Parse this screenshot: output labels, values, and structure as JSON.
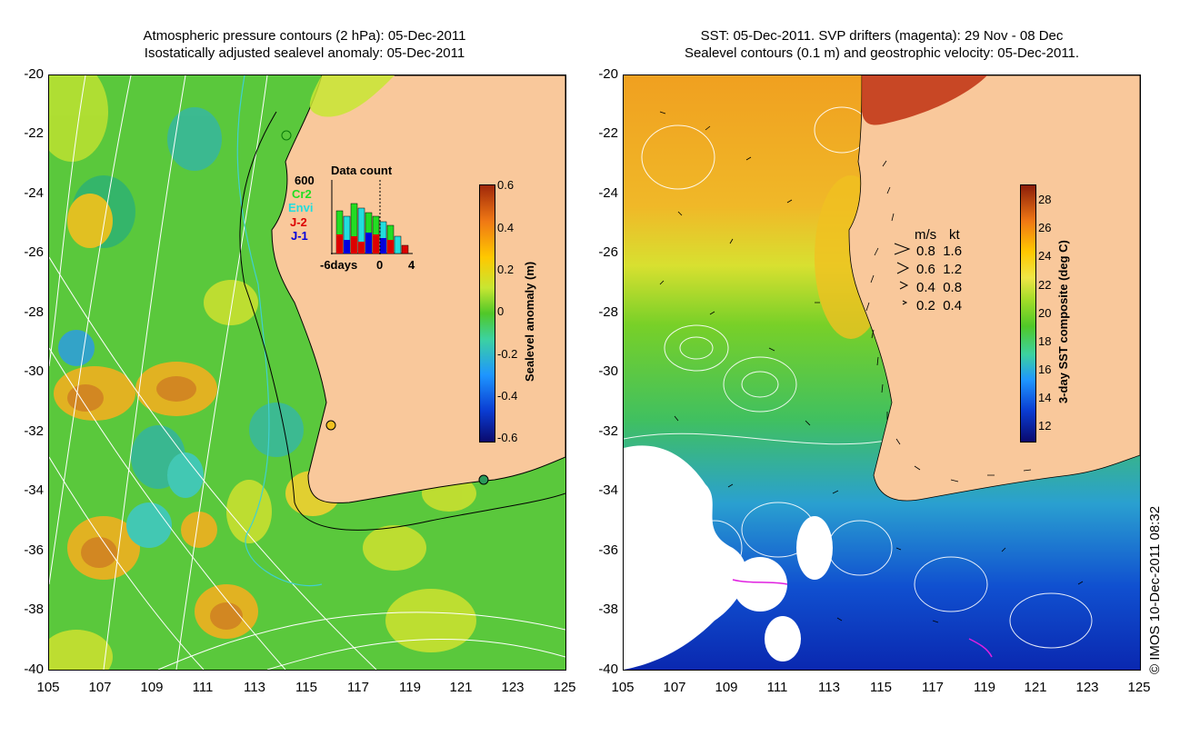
{
  "left_panel": {
    "title_line1": "Atmospheric pressure contours (2 hPa): 05-Dec-2011",
    "title_line2": "Isostatically adjusted sealevel anomaly: 05-Dec-2011",
    "colorbar_title": "Sealevel anomaly (m)",
    "colorbar_ticks": [
      "0.6",
      "0.4",
      "0.2",
      "0",
      "-0.2",
      "-0.4",
      "-0.6"
    ],
    "colors": {
      "land": "#f9c89b",
      "ocean_main": "#5ac83c",
      "contour": "#ffffff",
      "coast_line": "#000000",
      "isobath": "#40d0d0"
    },
    "inset": {
      "title": "Data count",
      "max_label": "600",
      "missions": [
        {
          "name": "Cr2",
          "color": "#22dd22"
        },
        {
          "name": "Envi",
          "color": "#22dddd"
        },
        {
          "name": "J-2",
          "color": "#dd0000"
        },
        {
          "name": "J-1",
          "color": "#0000dd"
        }
      ],
      "x_labels": [
        "-6days",
        "0",
        "4"
      ]
    }
  },
  "right_panel": {
    "title_line1": "SST: 05-Dec-2011. SVP drifters (magenta): 29 Nov - 08 Dec",
    "title_line2": "Sealevel contours (0.1 m) and geostrophic velocity: 05-Dec-2011.",
    "colorbar_title": "3-day SST composite (deg C)",
    "colorbar_ticks": [
      "28",
      "26",
      "24",
      "22",
      "20",
      "18",
      "16",
      "14",
      "12"
    ],
    "colors": {
      "land": "#f9c89b",
      "warm": "#f0b428",
      "cool": "#2c78dc"
    },
    "velocity_legend": {
      "header_ms": "m/s",
      "header_kt": "kt",
      "rows": [
        {
          "ms": "0.8",
          "kt": "1.6"
        },
        {
          "ms": "0.6",
          "kt": "1.2"
        },
        {
          "ms": "0.4",
          "kt": "0.8"
        },
        {
          "ms": "0.2",
          "kt": "0.4"
        }
      ]
    }
  },
  "axes": {
    "lat_ticks": [
      "-20",
      "-22",
      "-24",
      "-26",
      "-28",
      "-30",
      "-32",
      "-34",
      "-36",
      "-38",
      "-40"
    ],
    "lon_ticks": [
      "105",
      "107",
      "109",
      "111",
      "113",
      "115",
      "117",
      "119",
      "121",
      "123",
      "125"
    ]
  },
  "copyright": "© IMOS 10-Dec-2011 08:32"
}
